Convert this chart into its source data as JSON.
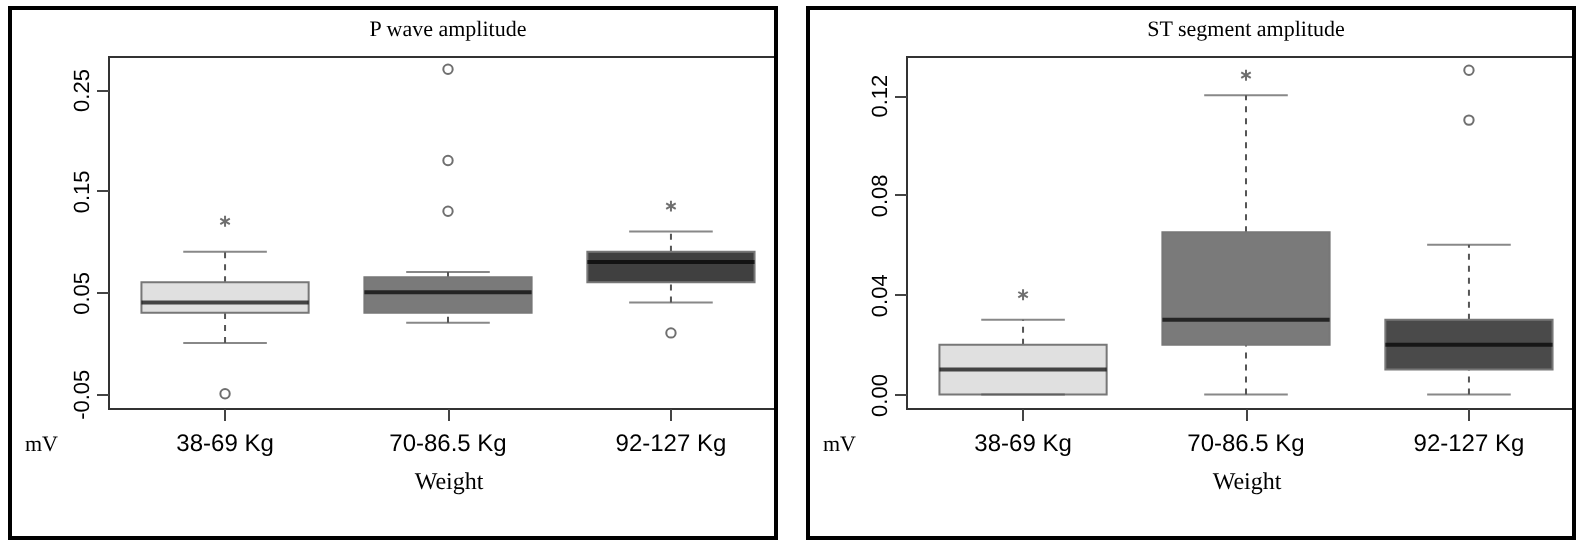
{
  "chart_data": [
    {
      "type": "box",
      "title": "P wave amplitude",
      "xlabel": "Weight",
      "ylabel": "mV",
      "categories": [
        "38-69 Kg",
        "70-86.5 Kg",
        "92-127 Kg"
      ],
      "colors": [
        "#e0e0e0",
        "#7a7a7a",
        "#404040"
      ],
      "boxes": [
        {
          "low": 0.0,
          "q1": 0.03,
          "median": 0.04,
          "q3": 0.06,
          "high": 0.09,
          "outliers": [
            -0.05
          ]
        },
        {
          "low": 0.02,
          "q1": 0.03,
          "median": 0.05,
          "q3": 0.065,
          "high": 0.07,
          "outliers": [
            0.13,
            0.18,
            0.27
          ]
        },
        {
          "low": 0.04,
          "q1": 0.06,
          "median": 0.08,
          "q3": 0.09,
          "high": 0.11,
          "outliers": [
            0.01
          ]
        }
      ],
      "ylim": [
        -0.064,
        0.283
      ],
      "yticks": [
        -0.05,
        0.05,
        0.15,
        0.25
      ],
      "series": [
        {
          "type": "scatter",
          "marker": "cross",
          "color": "#333333",
          "x": [
            "38-69 Kg",
            "92-127 Kg"
          ],
          "values": [
            0.12,
            0.135
          ]
        }
      ]
    },
    {
      "type": "box",
      "title": "ST segment amplitude",
      "xlabel": "Weight",
      "ylabel": "mV",
      "categories": [
        "38-69 Kg",
        "70-86.5 Kg",
        "92-127 Kg"
      ],
      "colors": [
        "#e0e0e0",
        "#7a7a7a",
        "#4a4a4a"
      ],
      "boxes": [
        {
          "low": 0.0,
          "q1": 0.0,
          "median": 0.01,
          "q3": 0.02,
          "high": 0.03
        },
        {
          "low": 0.0,
          "q1": 0.02,
          "median": 0.03,
          "q3": 0.065,
          "high": 0.12
        },
        {
          "low": 0.0,
          "q1": 0.01,
          "median": 0.02,
          "q3": 0.03,
          "high": 0.06,
          "outliers": [
            0.11,
            0.13
          ]
        }
      ],
      "ylim": [
        -0.0054,
        0.1357
      ],
      "yticks": [
        {
          "value": 0,
          "label": "0.00"
        },
        0.04,
        0.08,
        0.12
      ],
      "series": [
        {
          "type": "scatter",
          "marker": "cross",
          "color": "#333333",
          "x": [
            "38-69 Kg",
            "70-86.5 Kg"
          ],
          "values": [
            0.04,
            0.128
          ]
        }
      ]
    }
  ]
}
